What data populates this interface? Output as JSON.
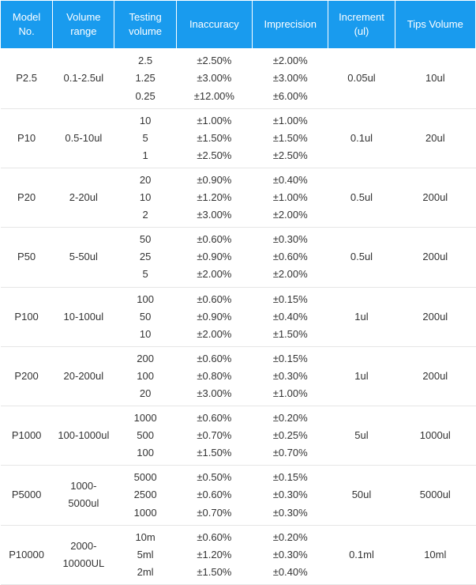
{
  "table": {
    "header_bg": "#199bee",
    "header_color": "#ffffff",
    "row_border": "#e6e6e6",
    "columns": [
      "Model No.",
      "Volume range",
      "Testing volume",
      "Inaccuracy",
      "Imprecision",
      "Increment (ul)",
      "Tips Volume"
    ],
    "rows": [
      {
        "model": "P2.5",
        "range": "0.1-2.5ul",
        "testing": [
          "2.5",
          "1.25",
          "0.25"
        ],
        "inaccuracy": [
          "±2.50%",
          "±3.00%",
          "±12.00%"
        ],
        "imprecision": [
          "±2.00%",
          "±3.00%",
          "±6.00%"
        ],
        "increment": "0.05ul",
        "tips": "10ul"
      },
      {
        "model": "P10",
        "range": "0.5-10ul",
        "testing": [
          "10",
          "5",
          "1"
        ],
        "inaccuracy": [
          "±1.00%",
          "±1.50%",
          "±2.50%"
        ],
        "imprecision": [
          "±1.00%",
          "±1.50%",
          "±2.50%"
        ],
        "increment": "0.1ul",
        "tips": "20ul"
      },
      {
        "model": "P20",
        "range": "2-20ul",
        "testing": [
          "20",
          "10",
          "2"
        ],
        "inaccuracy": [
          "±0.90%",
          "±1.20%",
          "±3.00%"
        ],
        "imprecision": [
          "±0.40%",
          "±1.00%",
          "±2.00%"
        ],
        "increment": "0.5ul",
        "tips": "200ul"
      },
      {
        "model": "P50",
        "range": "5-50ul",
        "testing": [
          "50",
          "25",
          "5"
        ],
        "inaccuracy": [
          "±0.60%",
          "±0.90%",
          "±2.00%"
        ],
        "imprecision": [
          "±0.30%",
          "±0.60%",
          "±2.00%"
        ],
        "increment": "0.5ul",
        "tips": "200ul"
      },
      {
        "model": "P100",
        "range": "10-100ul",
        "testing": [
          "100",
          "50",
          "10"
        ],
        "inaccuracy": [
          "±0.60%",
          "±0.90%",
          "±2.00%"
        ],
        "imprecision": [
          "±0.15%",
          "±0.40%",
          "±1.50%"
        ],
        "increment": "1ul",
        "tips": "200ul"
      },
      {
        "model": "P200",
        "range": "20-200ul",
        "testing": [
          "200",
          "100",
          "20"
        ],
        "inaccuracy": [
          "±0.60%",
          "±0.80%",
          "±3.00%"
        ],
        "imprecision": [
          "±0.15%",
          "±0.30%",
          "±1.00%"
        ],
        "increment": "1ul",
        "tips": "200ul"
      },
      {
        "model": "P1000",
        "range": "100-1000ul",
        "testing": [
          "1000",
          "500",
          "100"
        ],
        "inaccuracy": [
          "±0.60%",
          "±0.70%",
          "±1.50%"
        ],
        "imprecision": [
          "±0.20%",
          "±0.25%",
          "±0.70%"
        ],
        "increment": "5ul",
        "tips": "1000ul"
      },
      {
        "model": "P5000",
        "range": "1000-5000ul",
        "testing": [
          "5000",
          "2500",
          "1000"
        ],
        "inaccuracy": [
          "±0.50%",
          "±0.60%",
          "±0.70%"
        ],
        "imprecision": [
          "±0.15%",
          "±0.30%",
          "±0.30%"
        ],
        "increment": "50ul",
        "tips": "5000ul"
      },
      {
        "model": "P10000",
        "range": "2000-10000UL",
        "testing": [
          "10m",
          "5ml",
          "2ml"
        ],
        "inaccuracy": [
          "±0.60%",
          "±1.20%",
          "±1.50%"
        ],
        "imprecision": [
          "±0.20%",
          "±0.30%",
          "±0.40%"
        ],
        "increment": "0.1ml",
        "tips": "10ml"
      }
    ]
  }
}
